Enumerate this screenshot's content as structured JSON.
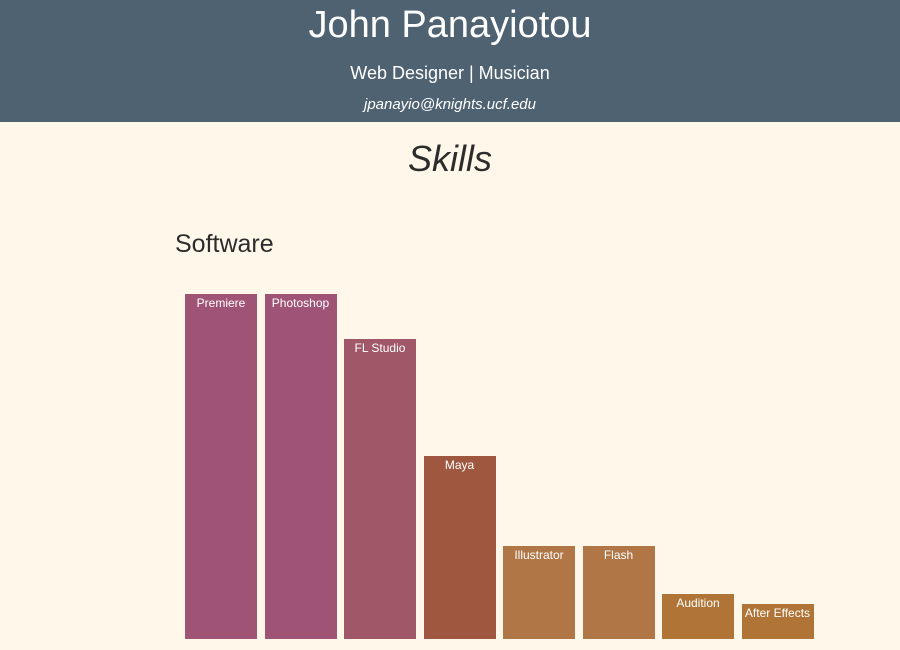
{
  "header": {
    "name": "John Panayiotou",
    "title": "Web Designer | Musician",
    "email": "jpanayio@knights.ucf.edu"
  },
  "section": {
    "title": "Skills",
    "subtitle": "Software"
  },
  "chart_data": {
    "type": "bar",
    "title": "Software",
    "xlabel": "",
    "ylabel": "",
    "ylim": [
      0,
      100
    ],
    "grid": false,
    "categories": [
      "Premiere",
      "Photoshop",
      "FL Studio",
      "Maya",
      "Illustrator",
      "Flash",
      "Audition",
      "After Effects"
    ],
    "values": [
      100,
      100,
      87,
      53,
      27,
      27,
      13,
      10
    ],
    "colors": [
      "#a05475",
      "#a05475",
      "#a05768",
      "#a05740",
      "#b07646",
      "#b07646",
      "#b07536",
      "#b07536"
    ]
  }
}
